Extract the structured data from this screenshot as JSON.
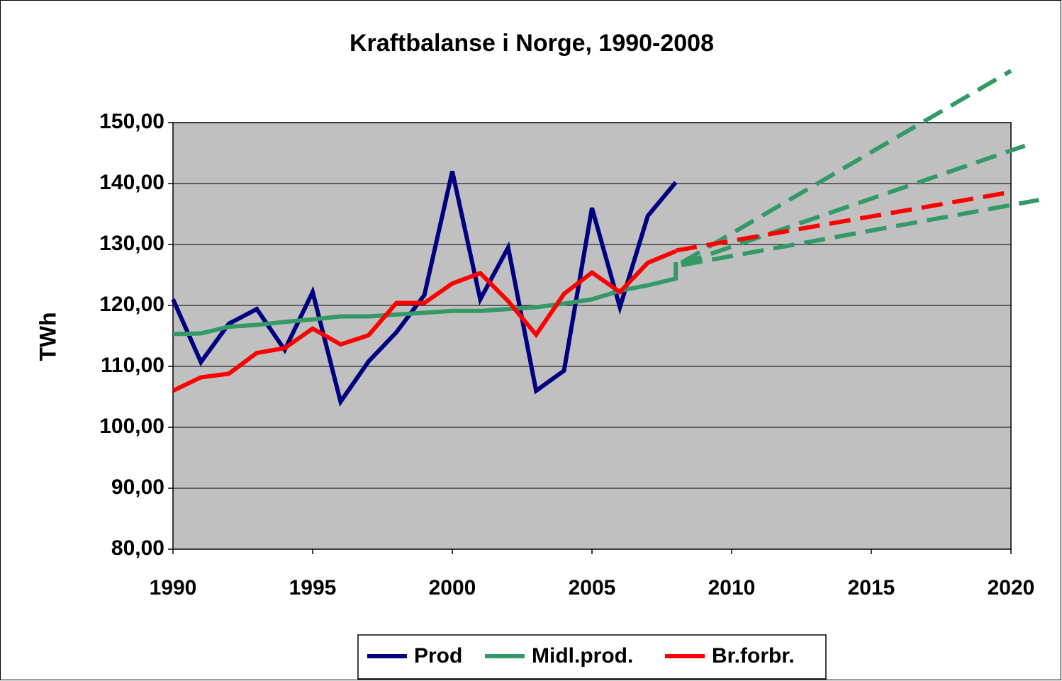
{
  "chart_data": {
    "type": "line",
    "title": "Kraftbalanse i Norge, 1990-2008",
    "ylabel": "TWh",
    "xlim": [
      1990,
      2020
    ],
    "xticks": [
      1990,
      1995,
      2000,
      2005,
      2010,
      2015,
      2020
    ],
    "ylim": [
      80,
      150
    ],
    "yticks": [
      {
        "value": 80,
        "label": "80,00"
      },
      {
        "value": 90,
        "label": "90,00"
      },
      {
        "value": 100,
        "label": "100,00"
      },
      {
        "value": 110,
        "label": "110,00"
      },
      {
        "value": 120,
        "label": "120,00"
      },
      {
        "value": 130,
        "label": "130,00"
      },
      {
        "value": 140,
        "label": "140,00"
      },
      {
        "value": 150,
        "label": "150,00"
      }
    ],
    "grid": true,
    "legend": "bottom",
    "series": [
      {
        "name": "Prod",
        "color": "#000080",
        "x": [
          1990,
          1991,
          1992,
          1993,
          1994,
          1995,
          1996,
          1997,
          1998,
          1999,
          2000,
          2001,
          2002,
          2003,
          2004,
          2005,
          2006,
          2007,
          2008
        ],
        "values": [
          121.0,
          110.7,
          117.0,
          119.4,
          112.7,
          122.2,
          104.2,
          110.8,
          115.6,
          121.7,
          142.0,
          121.0,
          129.5,
          106.0,
          109.3,
          136.0,
          119.7,
          134.7,
          140.2
        ]
      },
      {
        "name": "Midl.prod.",
        "color": "#339966",
        "x": [
          1990,
          1991,
          1992,
          1993,
          1994,
          1995,
          1996,
          1997,
          1998,
          1999,
          2000,
          2001,
          2002,
          2003,
          2004,
          2005,
          2006,
          2007,
          2008,
          2008
        ],
        "values": [
          115.3,
          115.4,
          116.5,
          116.8,
          117.3,
          117.7,
          118.2,
          118.2,
          118.5,
          118.8,
          119.1,
          119.1,
          119.4,
          119.7,
          120.3,
          121.0,
          122.4,
          123.3,
          124.4,
          127.1
        ]
      },
      {
        "name": "Br.forbr.",
        "color": "#ff0000",
        "x": [
          1990,
          1991,
          1992,
          1993,
          1994,
          1995,
          1996,
          1997,
          1998,
          1999,
          2000,
          2001,
          2002,
          2003,
          2004,
          2005,
          2006,
          2007,
          2008
        ],
        "values": [
          106.0,
          108.2,
          108.8,
          112.2,
          113.0,
          116.2,
          113.6,
          115.1,
          120.4,
          120.4,
          123.6,
          125.3,
          120.7,
          115.2,
          121.9,
          125.4,
          122.2,
          127.0,
          128.9
        ]
      },
      {
        "color": "#339966",
        "dashed": true,
        "x": [
          2008.2,
          2020
        ],
        "values": [
          127.0,
          158.5
        ]
      },
      {
        "color": "#339966",
        "dashed": true,
        "x": [
          2008.2,
          2020.5
        ],
        "values": [
          126.8,
          146.2
        ]
      },
      {
        "color": "#339966",
        "dashed": true,
        "x": [
          2008.2,
          2021
        ],
        "values": [
          126.6,
          137.3
        ]
      },
      {
        "color": "#ff0000",
        "dashed": true,
        "x": [
          2008,
          2020
        ],
        "values": [
          129.0,
          138.6
        ]
      }
    ]
  }
}
